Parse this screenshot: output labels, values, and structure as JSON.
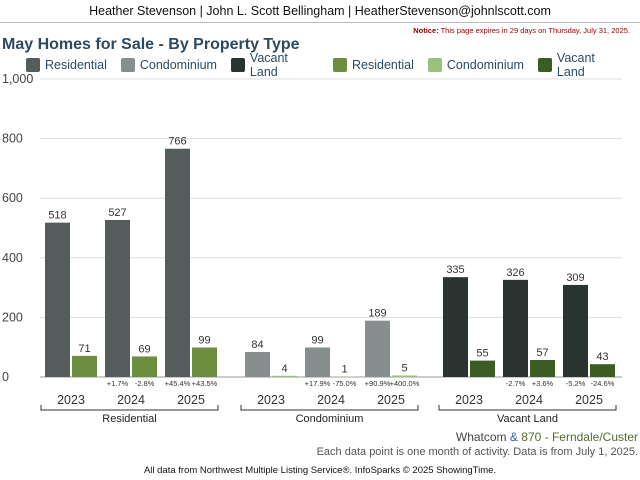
{
  "header": {
    "agent_line": "Heather Stevenson | John L. Scott Bellingham | HeatherStevenson@johnlscott.com",
    "notice_label": "Notice:",
    "notice_text": " This page expires in 29 days on Thursday, July 31, 2025."
  },
  "legend": [
    {
      "label": "Residential",
      "color": "#555d5c"
    },
    {
      "label": "Condominium",
      "color": "#868e8e"
    },
    {
      "label": "Vacant Land",
      "color": "#2b3331"
    },
    {
      "label": "Residential",
      "color": "#6c8e3e"
    },
    {
      "label": "Condominium",
      "color": "#98c17e"
    },
    {
      "label": "Vacant Land",
      "color": "#3b5c22"
    }
  ],
  "chart_data": {
    "type": "bar",
    "title": "May Homes for Sale - By Property Type",
    "ylim": [
      0,
      1000
    ],
    "yticks": [
      "0",
      "200",
      "400",
      "600",
      "800",
      "1,000"
    ],
    "groups": [
      {
        "name": "Residential",
        "years": [
          "2023",
          "2024",
          "2025"
        ],
        "primary": [
          518,
          527,
          766
        ],
        "secondary": [
          71,
          69,
          99
        ],
        "primary_color": "#555d5c",
        "secondary_color": "#6c8e3e",
        "change_primary": [
          "",
          "+1.7%",
          "+45.4%"
        ],
        "change_secondary": [
          "",
          "-2.8%",
          "+43.5%"
        ]
      },
      {
        "name": "Condominium",
        "years": [
          "2023",
          "2024",
          "2025"
        ],
        "primary": [
          84,
          99,
          189
        ],
        "secondary": [
          4,
          1,
          5
        ],
        "primary_color": "#868e8e",
        "secondary_color": "#98c17e",
        "change_primary": [
          "",
          "+17.9%",
          "+90.9%"
        ],
        "change_secondary": [
          "",
          "-75.0%",
          "+400.0%"
        ]
      },
      {
        "name": "Vacant Land",
        "years": [
          "2023",
          "2024",
          "2025"
        ],
        "primary": [
          335,
          326,
          309
        ],
        "secondary": [
          55,
          57,
          43
        ],
        "primary_color": "#2b3331",
        "secondary_color": "#3b5c22",
        "change_primary": [
          "",
          "-2.7%",
          "-5.2%"
        ],
        "change_secondary": [
          "",
          "+3.6%",
          "-24.6%"
        ]
      }
    ]
  },
  "footer": {
    "area": "Whatcom",
    "amp": "&",
    "code": "870 - Ferndale/Custer",
    "note": "Each data point is one month of activity. Data is from July 1, 2025.",
    "source": "All data from Northwest Multiple Listing Service®. InfoSparks © 2025 ShowingTime."
  }
}
